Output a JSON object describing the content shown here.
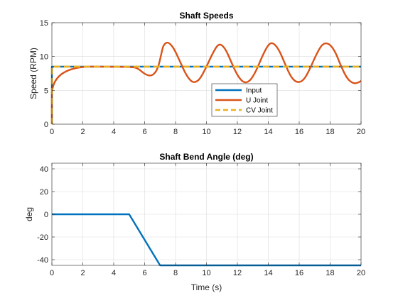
{
  "chart_data": [
    {
      "type": "line",
      "title": "Shaft Speeds",
      "xlabel": "",
      "ylabel": "Speed (RPM)",
      "xlim": [
        0,
        20
      ],
      "ylim": [
        0,
        15
      ],
      "xticks": [
        "0",
        "2",
        "4",
        "6",
        "8",
        "10",
        "12",
        "14",
        "16",
        "18",
        "20"
      ],
      "yticks": [
        "0",
        "5",
        "10",
        "15"
      ],
      "grid": true,
      "legend_position": "center-right",
      "series": [
        {
          "name": "Input",
          "color": "#0072BD",
          "style": "solid",
          "x": [
            0,
            0.001,
            20
          ],
          "y": [
            0,
            8.5,
            8.5
          ]
        },
        {
          "name": "U Joint",
          "color": "#D95319",
          "style": "solid",
          "x": [
            0,
            0.001,
            5.2,
            5.6,
            6.0,
            6.4,
            6.7,
            6.9,
            7.0,
            7.1,
            7.2,
            7.4,
            7.6,
            7.9,
            8.3,
            8.7,
            9.1,
            9.5,
            9.9,
            10.4,
            10.8,
            11.2,
            11.6,
            12.0,
            12.4,
            12.8,
            13.2,
            13.6,
            14.0,
            14.3,
            14.7,
            15.1,
            15.5,
            15.9,
            16.3,
            16.7,
            17.1,
            17.5,
            17.9,
            18.3,
            18.7,
            19.1,
            19.5,
            19.8,
            20.0
          ],
          "y": [
            0,
            8.5,
            8.5,
            8.2,
            7.4,
            7.1,
            7.6,
            8.6,
            9.6,
            10.6,
            11.6,
            12.1,
            12.0,
            11.2,
            9.2,
            7.2,
            6.1,
            6.4,
            8.0,
            10.5,
            12.0,
            11.3,
            9.2,
            7.2,
            6.1,
            6.3,
            7.8,
            10.0,
            11.8,
            12.1,
            11.0,
            8.8,
            6.8,
            6.1,
            6.5,
            8.2,
            10.3,
            11.9,
            12.0,
            10.9,
            8.6,
            6.7,
            6.0,
            6.1,
            6.4
          ]
        },
        {
          "name": "CV Joint",
          "color": "#EDB120",
          "style": "dashed",
          "x": [
            0,
            0.001,
            20
          ],
          "y": [
            0,
            8.5,
            8.5
          ]
        }
      ]
    },
    {
      "type": "line",
      "title": "Shaft Bend Angle (deg)",
      "xlabel": "Time (s)",
      "ylabel": "deg",
      "xlim": [
        0,
        20
      ],
      "ylim": [
        -45,
        45
      ],
      "xticks": [
        "0",
        "2",
        "4",
        "6",
        "8",
        "10",
        "12",
        "14",
        "16",
        "18",
        "20"
      ],
      "yticks": [
        "-40",
        "-20",
        "0",
        "20",
        "40"
      ],
      "grid": true,
      "series": [
        {
          "color": "#0072BD",
          "style": "solid",
          "x": [
            0,
            5,
            7,
            20
          ],
          "y": [
            0,
            0,
            -45,
            -45
          ]
        }
      ]
    }
  ]
}
